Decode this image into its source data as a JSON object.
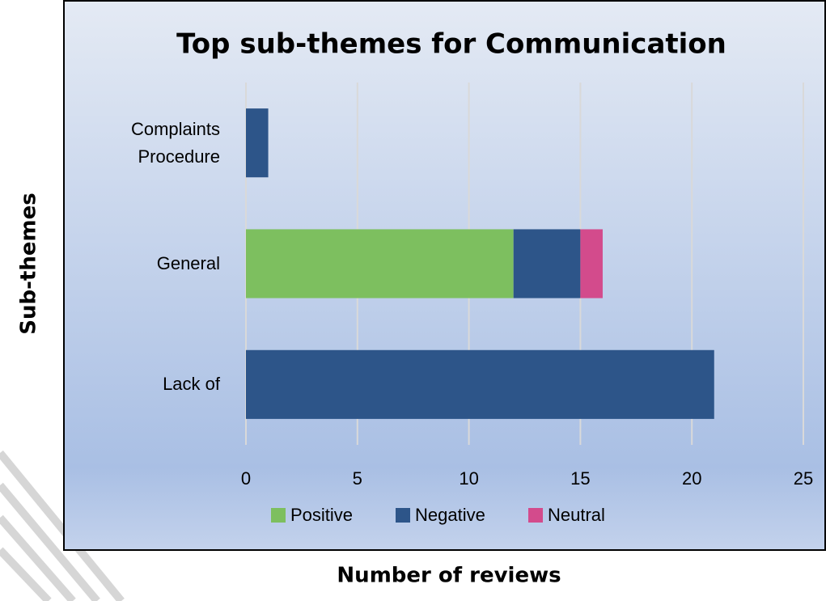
{
  "chart_data": {
    "type": "stacked-bar-horizontal",
    "title": "Top sub-themes for Communication",
    "x_label": "Number of reviews",
    "y_label": "Sub-themes",
    "categories": [
      "Complaints Procedure",
      "General",
      "Lack of"
    ],
    "series": [
      {
        "name": "Positive",
        "color": "#7dbf5f",
        "values": [
          0,
          12,
          0
        ]
      },
      {
        "name": "Negative",
        "color": "#2d5589",
        "values": [
          1,
          3,
          21
        ]
      },
      {
        "name": "Neutral",
        "color": "#d34b8c",
        "values": [
          0,
          1,
          0
        ]
      }
    ],
    "xlim": [
      0,
      25
    ],
    "xticks": [
      0,
      5,
      10,
      15,
      20,
      25
    ],
    "grid": true,
    "legend": "bottom"
  }
}
